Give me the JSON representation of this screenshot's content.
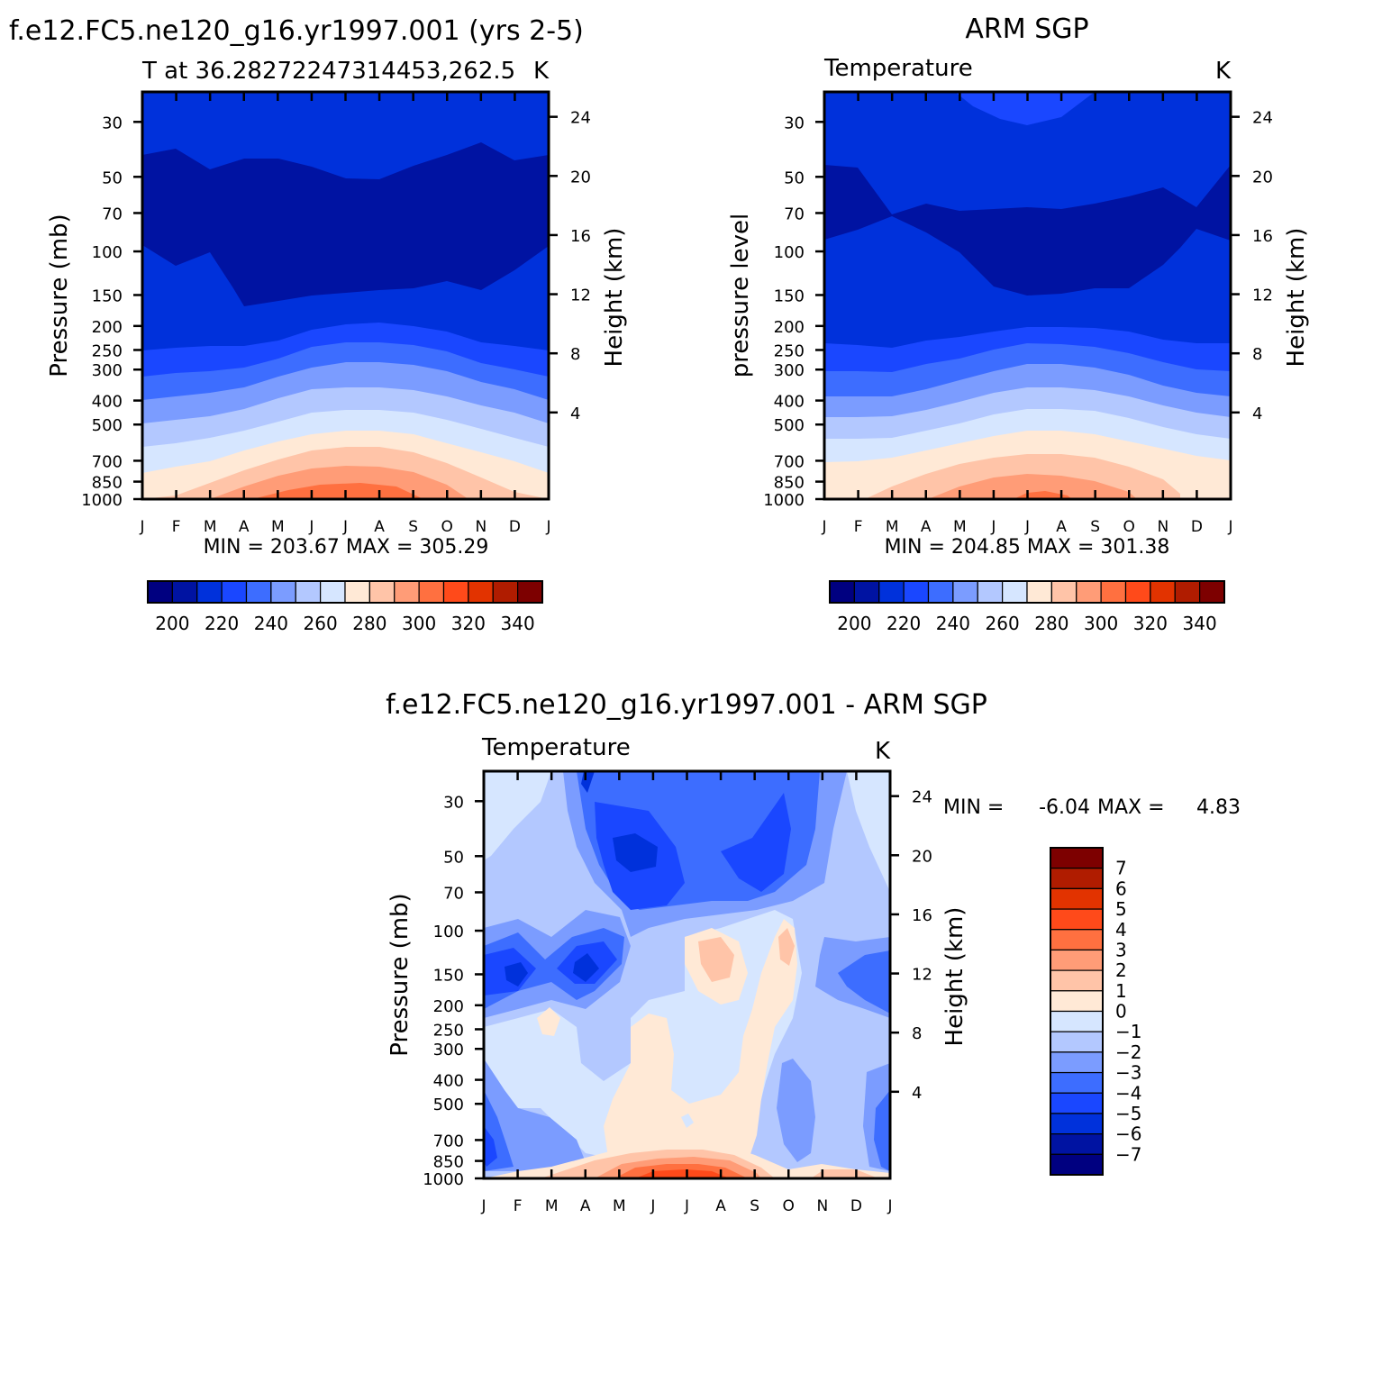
{
  "colors": {
    "abs_fill": [
      "#000080",
      "#0013a2",
      "#0031db",
      "#1a47ff",
      "#3d6dff",
      "#7b9cff",
      "#b3c8ff",
      "#d6e6ff",
      "#ffe9d6",
      "#ffc4a8",
      "#ff9c77",
      "#ff7040",
      "#ff4a1a",
      "#e23300",
      "#b01c00",
      "#7d0000"
    ],
    "diff_fill": [
      "#000080",
      "#0013a2",
      "#0031db",
      "#1a47ff",
      "#3d6dff",
      "#7b9cff",
      "#b3c8ff",
      "#d6e6ff",
      "#ffe9d6",
      "#ffc4a8",
      "#ff9c77",
      "#ff7040",
      "#ff4a1a",
      "#e23300",
      "#b01c00",
      "#7d0000"
    ]
  },
  "chart_data": [
    {
      "type": "heatmap",
      "name": "model",
      "title": "f.e12.FC5.ne120_g16.yr1997.001 (yrs 2-5)",
      "left_string": "T at 36.28272247314453,262.5",
      "right_string": "K",
      "ylabel": "Pressure (mb)",
      "y2label": "Height (km)",
      "x_ticks": [
        "J",
        "F",
        "M",
        "A",
        "M",
        "J",
        "J",
        "A",
        "S",
        "O",
        "N",
        "D",
        "J"
      ],
      "y_ticks": [
        "30",
        "50",
        "70",
        "100",
        "150",
        "200",
        "250",
        "300",
        "400",
        "500",
        "700",
        "850",
        "1000"
      ],
      "y2_ticks": [
        "24",
        "20",
        "16",
        "12",
        "8",
        "4"
      ],
      "stats": "MIN = 203.67 MAX = 305.29",
      "colorbar_labels": [
        "200",
        "220",
        "240",
        "260",
        "280",
        "300",
        "320",
        "340"
      ],
      "min": 203.67,
      "max": 305.29
    },
    {
      "type": "heatmap",
      "name": "obs",
      "title": "ARM SGP",
      "left_string": "Temperature",
      "right_string": "K",
      "ylabel": "pressure level",
      "y2label": "Height (km)",
      "x_ticks": [
        "J",
        "F",
        "M",
        "A",
        "M",
        "J",
        "J",
        "A",
        "S",
        "O",
        "N",
        "D",
        "J"
      ],
      "y_ticks": [
        "30",
        "50",
        "70",
        "100",
        "150",
        "200",
        "250",
        "300",
        "400",
        "500",
        "700",
        "850",
        "1000"
      ],
      "y2_ticks": [
        "24",
        "20",
        "16",
        "12",
        "8",
        "4"
      ],
      "stats": "MIN = 204.85 MAX = 301.38",
      "colorbar_labels": [
        "200",
        "220",
        "240",
        "260",
        "280",
        "300",
        "320",
        "340"
      ],
      "min": 204.85,
      "max": 301.38
    },
    {
      "type": "heatmap",
      "name": "diff",
      "title": "f.e12.FC5.ne120_g16.yr1997.001 - ARM SGP",
      "left_string": "Temperature",
      "right_string": "K",
      "ylabel": "Pressure (mb)",
      "y2label": "Height (km)",
      "x_ticks": [
        "J",
        "F",
        "M",
        "A",
        "M",
        "J",
        "J",
        "A",
        "S",
        "O",
        "N",
        "D",
        "J"
      ],
      "y_ticks": [
        "30",
        "50",
        "70",
        "100",
        "150",
        "200",
        "250",
        "300",
        "400",
        "500",
        "700",
        "850",
        "1000"
      ],
      "y2_ticks": [
        "24",
        "20",
        "16",
        "12",
        "8",
        "4"
      ],
      "stats_min_label": "MIN =",
      "stats_min": "-6.04",
      "stats_max_label": "MAX =",
      "stats_max": "4.83",
      "colorbar_labels": [
        "7",
        "6",
        "5",
        "4",
        "3",
        "2",
        "1",
        "0",
        "-1",
        "-2",
        "-3",
        "-4",
        "-5",
        "-6",
        "-7"
      ],
      "min": -6.04,
      "max": 4.83
    }
  ]
}
